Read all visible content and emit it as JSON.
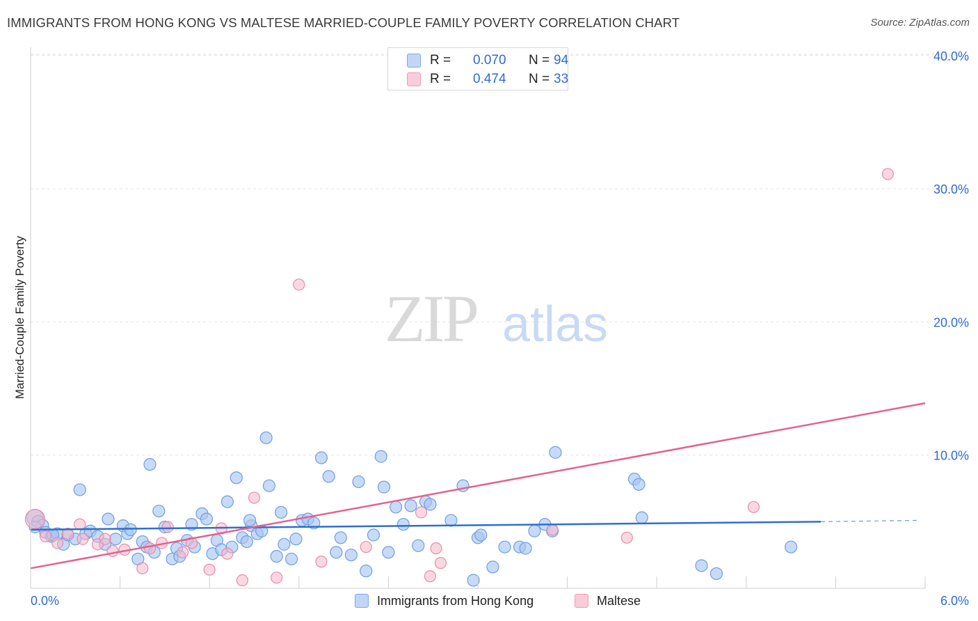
{
  "title": "IMMIGRANTS FROM HONG KONG VS MALTESE MARRIED-COUPLE FAMILY POVERTY CORRELATION CHART",
  "source": "Source: ZipAtlas.com",
  "watermark": {
    "part1": "ZIP",
    "part2": "atlas"
  },
  "legend": {
    "series1": {
      "r_label": "R =",
      "r_value": "0.070",
      "n_label": "N =",
      "n_value": "94"
    },
    "series2": {
      "r_label": "R =",
      "r_value": "0.474",
      "n_label": "N =",
      "n_value": "33"
    }
  },
  "colors": {
    "blue_fill": "#a9c6f2",
    "blue_stroke": "#6f9fe0",
    "blue_line": "#2d6fd0",
    "pink_fill": "#f6b8cb",
    "pink_stroke": "#ec8aa9",
    "pink_line": "#e4618e",
    "axis_text": "#2f6bd1",
    "grid": "#e2e2e2"
  },
  "chart_data": {
    "type": "scatter",
    "title": "IMMIGRANTS FROM HONG KONG VS MALTESE MARRIED-COUPLE FAMILY POVERTY CORRELATION CHART",
    "xlabel": "",
    "ylabel": "Married-Couple Family Poverty",
    "xlim": [
      0,
      6
    ],
    "ylim": [
      0,
      42
    ],
    "x_tick_labels": {
      "min": "0.0%",
      "max": "6.0%"
    },
    "y_ticks": [
      10,
      20,
      30,
      40
    ],
    "y_tick_labels": [
      "10.0%",
      "20.0%",
      "30.0%",
      "40.0%"
    ],
    "series": [
      {
        "name": "Immigrants from Hong Kong",
        "color": "blue",
        "trend": {
          "x0": 0,
          "y0": 4.4,
          "x1": 5.3,
          "y1": 5.0,
          "dash_to_x": 5.95,
          "dash_y": 5.1
        },
        "points": [
          [
            0.03,
            5.3
          ],
          [
            0.05,
            5.0
          ],
          [
            0.08,
            4.7
          ],
          [
            0.1,
            4.2
          ],
          [
            0.14,
            3.9
          ],
          [
            0.18,
            4.1
          ],
          [
            0.22,
            3.3
          ],
          [
            0.25,
            4.0
          ],
          [
            0.3,
            3.7
          ],
          [
            0.33,
            7.4
          ],
          [
            0.37,
            4.1
          ],
          [
            0.4,
            4.3
          ],
          [
            0.45,
            3.9
          ],
          [
            0.5,
            3.3
          ],
          [
            0.52,
            5.2
          ],
          [
            0.57,
            3.7
          ],
          [
            0.62,
            4.7
          ],
          [
            0.65,
            4.1
          ],
          [
            0.67,
            4.4
          ],
          [
            0.72,
            2.2
          ],
          [
            0.75,
            3.5
          ],
          [
            0.78,
            3.1
          ],
          [
            0.8,
            9.3
          ],
          [
            0.83,
            2.7
          ],
          [
            0.86,
            5.8
          ],
          [
            0.9,
            4.6
          ],
          [
            0.95,
            2.2
          ],
          [
            0.98,
            3.0
          ],
          [
            1.0,
            2.4
          ],
          [
            1.05,
            3.6
          ],
          [
            1.08,
            4.8
          ],
          [
            1.1,
            3.1
          ],
          [
            1.15,
            5.6
          ],
          [
            1.18,
            5.2
          ],
          [
            1.22,
            2.6
          ],
          [
            1.25,
            3.6
          ],
          [
            1.28,
            2.9
          ],
          [
            1.32,
            6.5
          ],
          [
            1.35,
            3.1
          ],
          [
            1.38,
            8.3
          ],
          [
            1.42,
            3.8
          ],
          [
            1.45,
            3.5
          ],
          [
            1.48,
            4.7
          ],
          [
            1.52,
            4.1
          ],
          [
            1.55,
            4.3
          ],
          [
            1.58,
            11.3
          ],
          [
            1.6,
            7.7
          ],
          [
            1.65,
            2.4
          ],
          [
            1.68,
            5.7
          ],
          [
            1.7,
            3.3
          ],
          [
            1.75,
            2.2
          ],
          [
            1.78,
            3.7
          ],
          [
            1.82,
            5.1
          ],
          [
            1.86,
            5.2
          ],
          [
            1.9,
            4.9
          ],
          [
            1.95,
            9.8
          ],
          [
            2.0,
            8.4
          ],
          [
            2.05,
            2.7
          ],
          [
            2.08,
            3.8
          ],
          [
            2.15,
            2.5
          ],
          [
            2.2,
            8.0
          ],
          [
            2.25,
            1.3
          ],
          [
            2.3,
            4.0
          ],
          [
            2.35,
            9.9
          ],
          [
            2.37,
            7.6
          ],
          [
            2.4,
            2.7
          ],
          [
            2.45,
            6.1
          ],
          [
            2.5,
            4.8
          ],
          [
            2.55,
            6.2
          ],
          [
            2.6,
            3.2
          ],
          [
            2.65,
            6.5
          ],
          [
            2.68,
            6.3
          ],
          [
            2.82,
            5.1
          ],
          [
            2.9,
            7.7
          ],
          [
            2.97,
            0.6
          ],
          [
            3.0,
            3.8
          ],
          [
            3.02,
            4.0
          ],
          [
            3.1,
            1.6
          ],
          [
            3.18,
            3.1
          ],
          [
            3.28,
            3.1
          ],
          [
            3.32,
            3.0
          ],
          [
            3.38,
            4.3
          ],
          [
            3.45,
            4.8
          ],
          [
            3.5,
            4.3
          ],
          [
            3.52,
            10.2
          ],
          [
            4.05,
            8.2
          ],
          [
            4.08,
            7.8
          ],
          [
            4.1,
            5.3
          ],
          [
            4.5,
            1.7
          ],
          [
            4.6,
            1.1
          ],
          [
            5.1,
            3.1
          ],
          [
            0.03,
            4.6
          ],
          [
            0.15,
            4.0
          ],
          [
            1.47,
            5.1
          ]
        ]
      },
      {
        "name": "Maltese",
        "color": "pink",
        "trend": {
          "x0": 0,
          "y0": 1.5,
          "x1": 6.0,
          "y1": 13.9
        },
        "points": [
          [
            0.03,
            5.2
          ],
          [
            0.1,
            3.9
          ],
          [
            0.18,
            3.4
          ],
          [
            0.25,
            4.1
          ],
          [
            0.33,
            4.8
          ],
          [
            0.35,
            3.7
          ],
          [
            0.45,
            3.3
          ],
          [
            0.5,
            3.7
          ],
          [
            0.55,
            2.8
          ],
          [
            0.63,
            2.9
          ],
          [
            0.75,
            1.5
          ],
          [
            0.8,
            3.0
          ],
          [
            0.88,
            3.4
          ],
          [
            0.92,
            4.6
          ],
          [
            1.02,
            2.7
          ],
          [
            1.08,
            3.4
          ],
          [
            1.2,
            1.4
          ],
          [
            1.28,
            4.5
          ],
          [
            1.32,
            2.6
          ],
          [
            1.5,
            6.8
          ],
          [
            1.42,
            0.6
          ],
          [
            1.65,
            0.8
          ],
          [
            1.8,
            22.8
          ],
          [
            1.95,
            2.0
          ],
          [
            2.25,
            3.1
          ],
          [
            2.62,
            5.7
          ],
          [
            2.72,
            3.0
          ],
          [
            2.75,
            1.9
          ],
          [
            3.5,
            4.4
          ],
          [
            4.0,
            3.8
          ],
          [
            4.85,
            6.1
          ],
          [
            5.75,
            31.1
          ],
          [
            2.68,
            0.9
          ]
        ]
      }
    ]
  }
}
